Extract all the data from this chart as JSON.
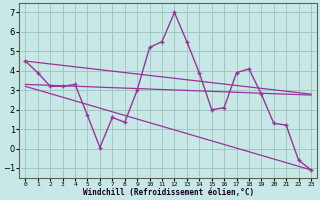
{
  "xlabel": "Windchill (Refroidissement éolien,°C)",
  "bg_color": "#c8e8e8",
  "grid_color": "#a0c8c0",
  "line_color": "#993399",
  "xlim": [
    -0.5,
    23.5
  ],
  "ylim": [
    -1.5,
    7.5
  ],
  "yticks": [
    -1,
    0,
    1,
    2,
    3,
    4,
    5,
    6,
    7
  ],
  "xticks": [
    0,
    1,
    2,
    3,
    4,
    5,
    6,
    7,
    8,
    9,
    10,
    11,
    12,
    13,
    14,
    15,
    16,
    17,
    18,
    19,
    20,
    21,
    22,
    23
  ],
  "series1_x": [
    0,
    1,
    2,
    3,
    4,
    5,
    6,
    7,
    8,
    9,
    10,
    11,
    12,
    13,
    14,
    15,
    16,
    17,
    18,
    19,
    20,
    21,
    22,
    23
  ],
  "series1_y": [
    4.5,
    3.9,
    3.2,
    3.2,
    3.3,
    1.7,
    0.05,
    1.6,
    1.35,
    3.0,
    5.2,
    5.5,
    7.0,
    5.5,
    3.9,
    2.0,
    2.1,
    3.9,
    4.1,
    2.8,
    1.3,
    1.2,
    -0.6,
    -1.1
  ],
  "trend1_x0": 0,
  "trend1_y0": 4.5,
  "trend1_x1": 23,
  "trend1_y1": 2.8,
  "trend2_x0": 0,
  "trend2_y0": 3.2,
  "trend2_x1": 23,
  "trend2_y1": -1.1,
  "trend3_x0": 0,
  "trend3_y0": 3.3,
  "trend3_x1": 23,
  "trend3_y1": 2.75
}
